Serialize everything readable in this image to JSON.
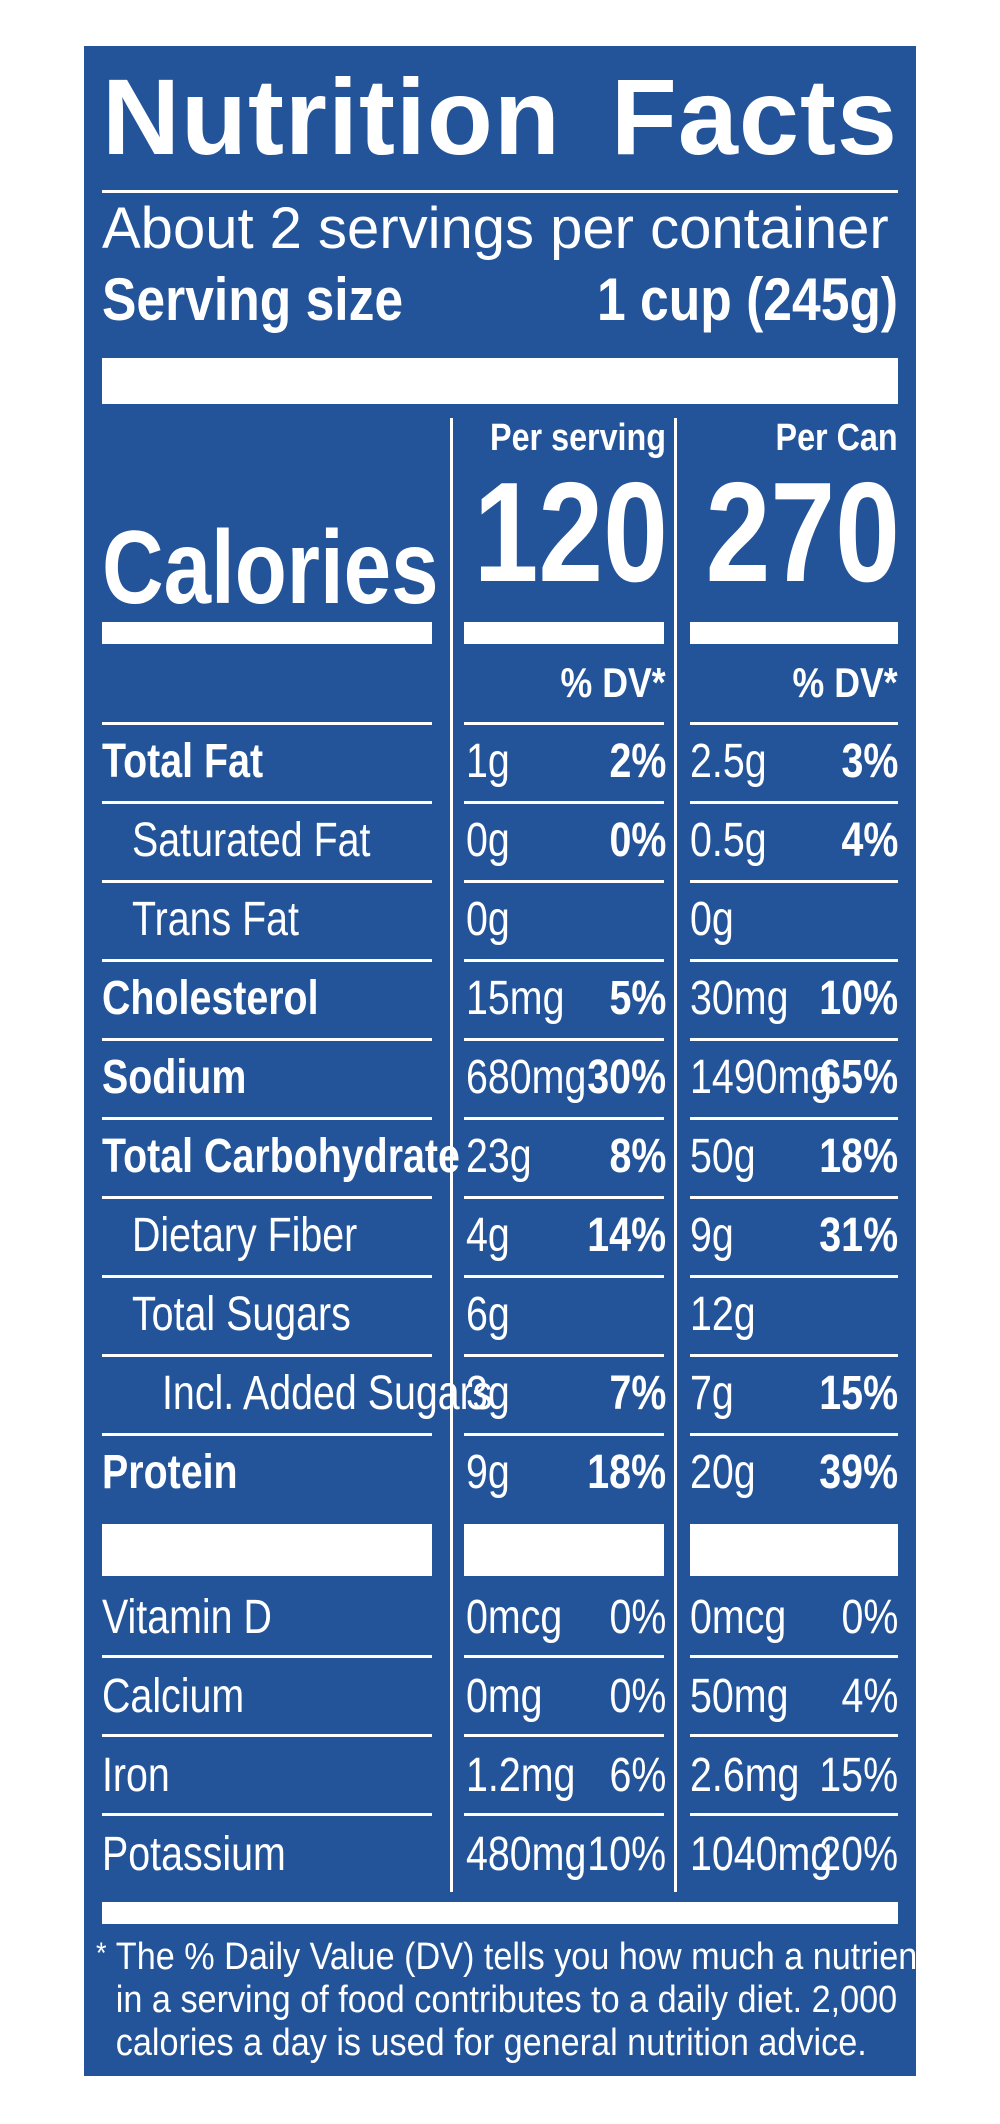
{
  "title": {
    "word1": "Nutrition",
    "word2": "Facts"
  },
  "servings_per_container": "About 2 servings per container",
  "serving_size": {
    "label": "Serving size",
    "value": "1 cup (245g)"
  },
  "calories": {
    "label": "Calories",
    "per_serving_header": "Per serving",
    "per_can_header": "Per Can",
    "per_serving": "120",
    "per_can": "270"
  },
  "dv_header": "% DV*",
  "nutrients": [
    {
      "name": "Total Fat",
      "bold": true,
      "indent": 0,
      "serving_amount": "1g",
      "serving_dv": "2%",
      "can_amount": "2.5g",
      "can_dv": "3%"
    },
    {
      "name": "Saturated Fat",
      "bold": false,
      "indent": 1,
      "serving_amount": "0g",
      "serving_dv": "0%",
      "can_amount": "0.5g",
      "can_dv": "4%"
    },
    {
      "name": "Trans Fat",
      "bold": false,
      "indent": 1,
      "serving_amount": "0g",
      "serving_dv": "",
      "can_amount": "0g",
      "can_dv": ""
    },
    {
      "name": "Cholesterol",
      "bold": true,
      "indent": 0,
      "serving_amount": "15mg",
      "serving_dv": "5%",
      "can_amount": "30mg",
      "can_dv": "10%"
    },
    {
      "name": "Sodium",
      "bold": true,
      "indent": 0,
      "serving_amount": "680mg",
      "serving_dv": "30%",
      "can_amount": "1490mg",
      "can_dv": "65%"
    },
    {
      "name": "Total Carbohydrate",
      "bold": true,
      "indent": 0,
      "serving_amount": "23g",
      "serving_dv": "8%",
      "can_amount": "50g",
      "can_dv": "18%"
    },
    {
      "name": "Dietary Fiber",
      "bold": false,
      "indent": 1,
      "serving_amount": "4g",
      "serving_dv": "14%",
      "can_amount": "9g",
      "can_dv": "31%"
    },
    {
      "name": "Total Sugars",
      "bold": false,
      "indent": 1,
      "serving_amount": "6g",
      "serving_dv": "",
      "can_amount": "12g",
      "can_dv": ""
    },
    {
      "name": "Incl. Added Sugars",
      "bold": false,
      "indent": 2,
      "serving_amount": "3g",
      "serving_dv": "7%",
      "can_amount": "7g",
      "can_dv": "15%"
    },
    {
      "name": "Protein",
      "bold": true,
      "indent": 0,
      "serving_amount": "9g",
      "serving_dv": "18%",
      "can_amount": "20g",
      "can_dv": "39%"
    }
  ],
  "vitamins": [
    {
      "name": "Vitamin D",
      "serving_amount": "0mcg",
      "serving_dv": "0%",
      "can_amount": "0mcg",
      "can_dv": "0%"
    },
    {
      "name": "Calcium",
      "serving_amount": "0mg",
      "serving_dv": "0%",
      "can_amount": "50mg",
      "can_dv": "4%"
    },
    {
      "name": "Iron",
      "serving_amount": "1.2mg",
      "serving_dv": "6%",
      "can_amount": "2.6mg",
      "can_dv": "15%"
    },
    {
      "name": "Potassium",
      "serving_amount": "480mg",
      "serving_dv": "10%",
      "can_amount": "1040mg",
      "can_dv": "20%"
    }
  ],
  "footnote": {
    "star": "*",
    "lines": [
      "The % Daily Value (DV) tells you how much a nutrient",
      "in a serving of food contributes to a daily diet. 2,000",
      "calories a day is used for general nutrition advice."
    ]
  },
  "colors": {
    "panel": "#23549a",
    "text": "#ffffff",
    "background": "#ffffff"
  }
}
